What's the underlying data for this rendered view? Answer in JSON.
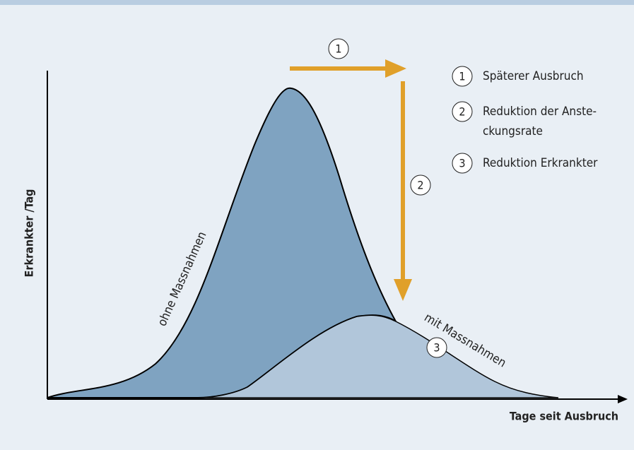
{
  "diagram": {
    "y_axis_label": "Erkrankter /Tag",
    "x_axis_label": "Tage seit Ausbruch",
    "curve_labels": [
      "ohne Massnahmen",
      "mit Massnahmen"
    ],
    "markers": [
      "1",
      "2",
      "3"
    ],
    "legend": [
      {
        "number": "1",
        "lines": [
          "Späterer Ausbruch"
        ]
      },
      {
        "number": "2",
        "lines": [
          "Reduktion der Anste-",
          "ckungsrate"
        ]
      },
      {
        "number": "3",
        "lines": [
          "Reduktion Erkrankter"
        ]
      }
    ]
  }
}
